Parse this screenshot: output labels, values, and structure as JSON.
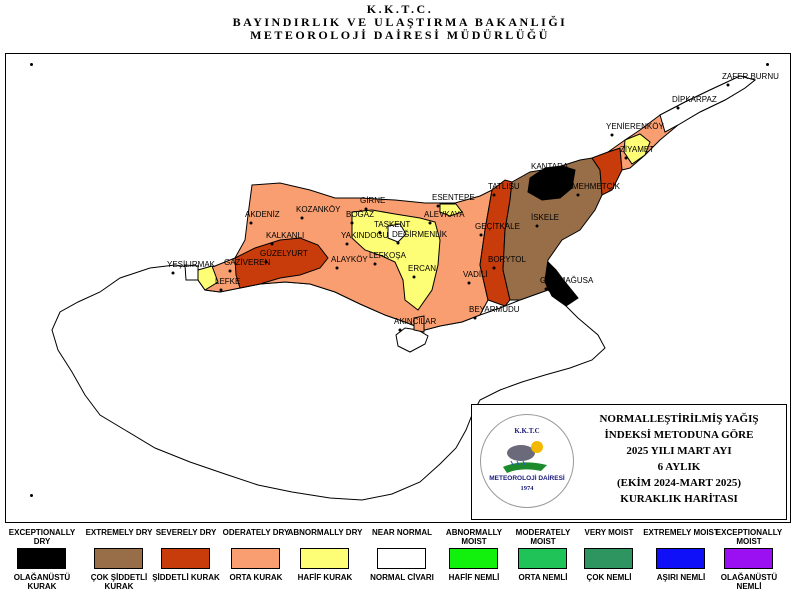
{
  "header": {
    "line1": "K.K.T.C.",
    "line2": "BAYINDIRLIK VE ULAŞTIRMA BAKANLIĞI",
    "line3": "METEOROLOJİ DAİRESİ MÜDÜRLÜĞÜ"
  },
  "colors": {
    "exceptionally_dry": "#000000",
    "extremely_dry": "#986e48",
    "severely_dry": "#c83c0c",
    "moderately_dry": "#f89e70",
    "abnormally_dry": "#fdfd76",
    "near_normal": "#ffffff",
    "abnormally_moist": "#12f00e",
    "moderately_moist": "#20c358",
    "very_moist": "#2e9560",
    "extremely_moist": "#1010f8",
    "exceptionally_moist": "#9b0ff3"
  },
  "places": [
    {
      "name": "ZAFER BURNU"
    },
    {
      "name": "DİPKARPAZ"
    },
    {
      "name": "YENİERENKÖY"
    },
    {
      "name": "ZİYAMET"
    },
    {
      "name": "KANTARA"
    },
    {
      "name": "TATLISU"
    },
    {
      "name": "MEHMETÇİK"
    },
    {
      "name": "İSKELE"
    },
    {
      "name": "GEÇİTKALE"
    },
    {
      "name": "BORYTOL"
    },
    {
      "name": "VADİLİ"
    },
    {
      "name": "GAZİMAĞUSA"
    },
    {
      "name": "BEYARMUDU"
    },
    {
      "name": "AKINCILAR"
    },
    {
      "name": "ESENTEPE"
    },
    {
      "name": "ALEVKAYA"
    },
    {
      "name": "GİRNE"
    },
    {
      "name": "BOĞAZ"
    },
    {
      "name": "KOZANKÖY"
    },
    {
      "name": "AKDENİZ"
    },
    {
      "name": "TAŞKENT"
    },
    {
      "name": "YAKINDOĞU"
    },
    {
      "name": "DEĞİRMENLİK"
    },
    {
      "name": "KALKANLI"
    },
    {
      "name": "GÜZELYURT"
    },
    {
      "name": "ALAYKÖY"
    },
    {
      "name": "LEFKOŞA"
    },
    {
      "name": "ERCAN"
    },
    {
      "name": "YEŞİLIRMAK"
    },
    {
      "name": "GAZİVEREN"
    },
    {
      "name": "LEFKE"
    }
  ],
  "info": {
    "logo_top": "K.K.T.C",
    "logo_bottom": "METEOROLOJİ DAİRESİ",
    "logo_year": "1974",
    "line1": "NORMALLEŞTİRİLMİŞ YAĞIŞ",
    "line2": "İNDEKSİ METODUNA GÖRE",
    "line3": "2025 YILI MART AYI",
    "line4": "6 AYLIK",
    "line5": "(EKİM 2024-MART 2025)",
    "line6": "KURAKLIK HARİTASI"
  },
  "legend": [
    {
      "en": "EXCEPTIONALLY DRY",
      "tr": "OLAĞANÜSTÜ KURAK",
      "color": "#000000"
    },
    {
      "en": "EXTREMELY DRY",
      "tr": "ÇOK ŞİDDETLİ KURAK",
      "color": "#986e48"
    },
    {
      "en": "SEVERELY DRY",
      "tr": "ŞİDDETLİ KURAK",
      "color": "#c83c0c"
    },
    {
      "en": "ODERATELY DRY",
      "tr": "ORTA KURAK",
      "color": "#f89e70"
    },
    {
      "en": "ABNORMALLY DRY",
      "tr": "HAFİF KURAK",
      "color": "#fdfd76"
    },
    {
      "en": "NEAR NORMAL",
      "tr": "NORMAL CİVARI",
      "color": "#ffffff"
    },
    {
      "en": "ABNORMALLY MOIST",
      "tr": "HAFİF NEMLİ",
      "color": "#12f00e"
    },
    {
      "en": "MODERATELY MOIST",
      "tr": "ORTA NEMLİ",
      "color": "#20c358"
    },
    {
      "en": "VERY MOIST",
      "tr": "ÇOK NEMLİ",
      "color": "#2e9560"
    },
    {
      "en": "EXTREMELY MOIST",
      "tr": "AŞIRI NEMLİ",
      "color": "#1010f8"
    },
    {
      "en": "EXCEPTIONALLY MOIST",
      "tr": "OLAĞANÜSTÜ NEMLİ",
      "color": "#9b0ff3"
    }
  ]
}
